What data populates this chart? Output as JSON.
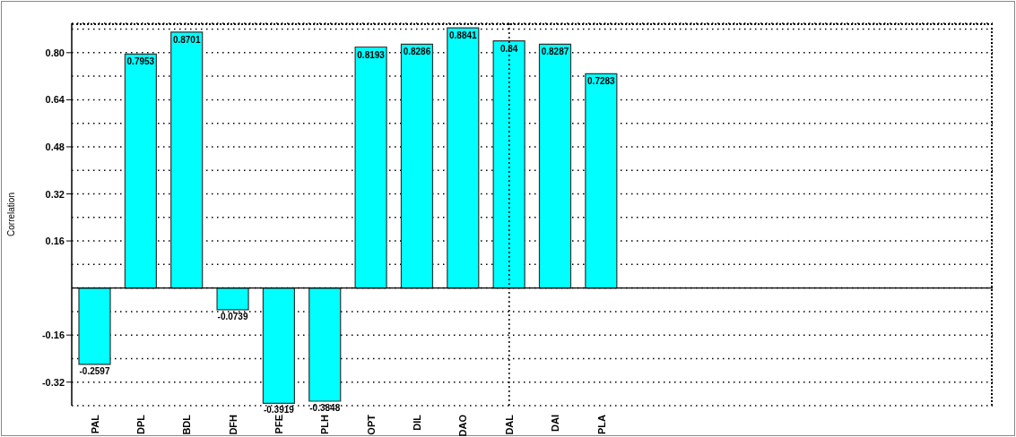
{
  "chart_data": {
    "type": "bar",
    "ylabel": "Correlation",
    "categories": [
      "PAL",
      "DPL",
      "BDL",
      "DFH",
      "PFE",
      "PLH",
      "OPT",
      "DIL",
      "DAO",
      "DAL",
      "DAI",
      "PLA",
      null,
      null,
      null,
      null,
      null,
      null,
      null,
      null
    ],
    "values": [
      -0.2597,
      0.7953,
      0.8701,
      -0.0739,
      -0.3919,
      -0.3848,
      0.8193,
      0.8286,
      0.8841,
      0.84,
      0.8287,
      0.7283,
      null,
      null,
      null,
      null,
      null,
      null,
      null,
      null
    ],
    "color": "#00ffff",
    "data_labels": true,
    "ylim": [
      -0.4,
      0.9
    ],
    "yticks": [
      {
        "value": -0.4,
        "label": null
      },
      -0.32,
      {
        "value": -0.24,
        "label": null
      },
      -0.16,
      {
        "value": -0.08,
        "label": null
      },
      {
        "value": 0,
        "label": null
      },
      {
        "value": 0.08,
        "label": null
      },
      0.16,
      {
        "value": 0.24,
        "label": null
      },
      0.32,
      {
        "value": 0.4,
        "label": null
      },
      0.48,
      {
        "value": 0.56,
        "label": null
      },
      0.64,
      {
        "value": 0.72,
        "label": null
      },
      {
        "value": 0.8,
        "label": "0.80"
      },
      {
        "value": 0.88,
        "label": null
      }
    ],
    "grid": "y",
    "ref_lines": [
      {
        "axis": "x",
        "value": "DAL",
        "line_style": "dotted"
      }
    ]
  }
}
